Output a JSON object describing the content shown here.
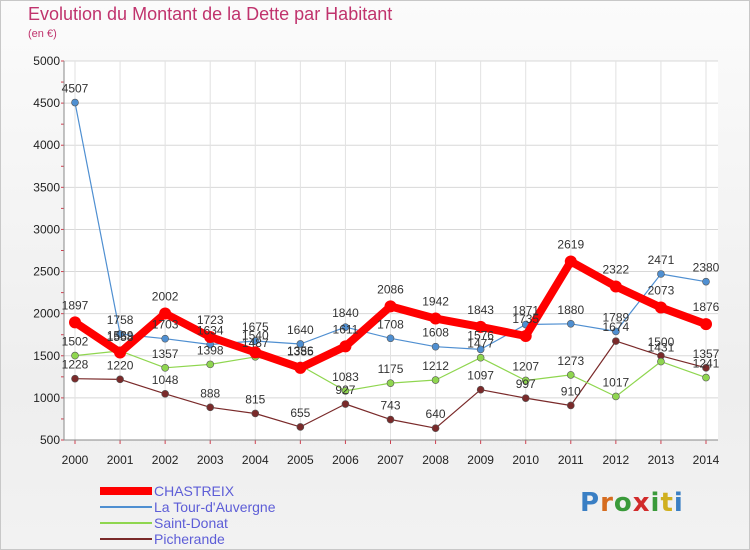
{
  "header": {
    "title": "Evolution du Montant de la Dette par Habitant",
    "subtitle": "(en €)"
  },
  "logo": {
    "text": "Proxiti",
    "letter_colors": [
      "#3a7fc4",
      "#d66c1f",
      "#3a9a3a",
      "#d12b2b",
      "#3a9a3a",
      "#d0b020",
      "#3a7fc4"
    ]
  },
  "chart_data": {
    "type": "line",
    "title": "Evolution du Montant de la Dette par Habitant",
    "subtitle": "(en €)",
    "xlabel": "",
    "ylabel": "",
    "x": [
      "2000",
      "2001",
      "2002",
      "2003",
      "2004",
      "2005",
      "2006",
      "2007",
      "2008",
      "2009",
      "2010",
      "2011",
      "2012",
      "2013",
      "2014"
    ],
    "ylim": [
      500,
      5000
    ],
    "yticks": [
      500,
      1000,
      1500,
      2000,
      2500,
      3000,
      3500,
      4000,
      4500,
      5000
    ],
    "grid": true,
    "legend_position": "bottom-left",
    "series": [
      {
        "name": "CHASTREIX",
        "color": "#ff0000",
        "values": [
          1897,
          1539,
          2002,
          1723,
          1540,
          1356,
          1611,
          2086,
          1942,
          1843,
          1735,
          2619,
          2322,
          2073,
          1876
        ],
        "labels": [
          "1897",
          "1539",
          "2002",
          "1723",
          "1540",
          "1356",
          "1611",
          "2086",
          "1942",
          "1843",
          "1735",
          "2619",
          "2322",
          "2073",
          "1876"
        ]
      },
      {
        "name": "La Tour-d'Auvergne",
        "color": "#4f8fd1",
        "values": [
          4507,
          1758,
          1703,
          1634,
          1675,
          1640,
          1840,
          1708,
          1608,
          1576,
          1871,
          1880,
          1789,
          2471,
          2380
        ],
        "labels": [
          "4507",
          "1758",
          "1703",
          "1634",
          "1675",
          "1640",
          "1840",
          "1708",
          "1608",
          "1576",
          "1871",
          "1880",
          "1789",
          "2471",
          "2380"
        ]
      },
      {
        "name": "Saint-Donat",
        "color": "#8fd64f",
        "values": [
          1502,
          1558,
          1357,
          1398,
          1487,
          1385,
          1083,
          1175,
          1212,
          1477,
          1207,
          1273,
          1017,
          1431,
          1241
        ],
        "labels": [
          "1502",
          "1558",
          "1357",
          "1398",
          "1487",
          "1385",
          "1083",
          "1175",
          "1212",
          "1477",
          "1207",
          "1273",
          "1017",
          "1431",
          "1241"
        ]
      },
      {
        "name": "Picherande",
        "color": "#7a2a2a",
        "values": [
          1228,
          1220,
          1048,
          888,
          815,
          655,
          927,
          743,
          640,
          1097,
          997,
          910,
          1674,
          1500,
          1357
        ],
        "labels": [
          "1228",
          "1220",
          "1048",
          "888",
          "815",
          "655",
          "927",
          "743",
          "640",
          "1097",
          "997",
          "910",
          "1674",
          "1500",
          "1357"
        ]
      }
    ]
  }
}
